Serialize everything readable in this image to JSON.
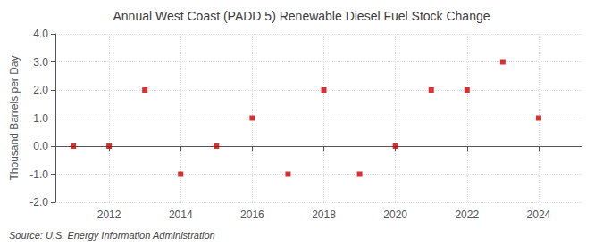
{
  "chart_data": {
    "type": "scatter",
    "title": "Annual West Coast (PADD 5) Renewable Diesel Fuel Stock Change",
    "ylabel": "Thousand Barrels per Day",
    "annotations": [
      "Source: U.S. Energy Information Administration"
    ],
    "x": [
      2011,
      2012,
      2013,
      2014,
      2015,
      2016,
      2017,
      2018,
      2019,
      2020,
      2021,
      2022,
      2023,
      2024
    ],
    "values": [
      0.0,
      0.0,
      2.0,
      -1.0,
      0.0,
      1.0,
      -1.0,
      2.0,
      -1.0,
      0.0,
      2.0,
      2.0,
      3.0,
      1.0
    ],
    "xlim": [
      2010.5,
      2025.2
    ],
    "ylim": [
      -2.0,
      4.0
    ],
    "xticks": [
      2012,
      2014,
      2016,
      2018,
      2020,
      2022,
      2024
    ],
    "yticks": [
      {
        "value": -2.0,
        "label": "-2.0"
      },
      {
        "value": -1.0,
        "label": "-1.0"
      },
      {
        "value": 0.0,
        "label": "0.0"
      },
      {
        "value": 1.0,
        "label": "1.0"
      },
      {
        "value": 2.0,
        "label": "2.0"
      },
      {
        "value": 3.0,
        "label": "3.0"
      },
      {
        "value": 4.0,
        "label": "4.0"
      }
    ],
    "color": "#cc0000",
    "marker": "square",
    "grid": true
  }
}
